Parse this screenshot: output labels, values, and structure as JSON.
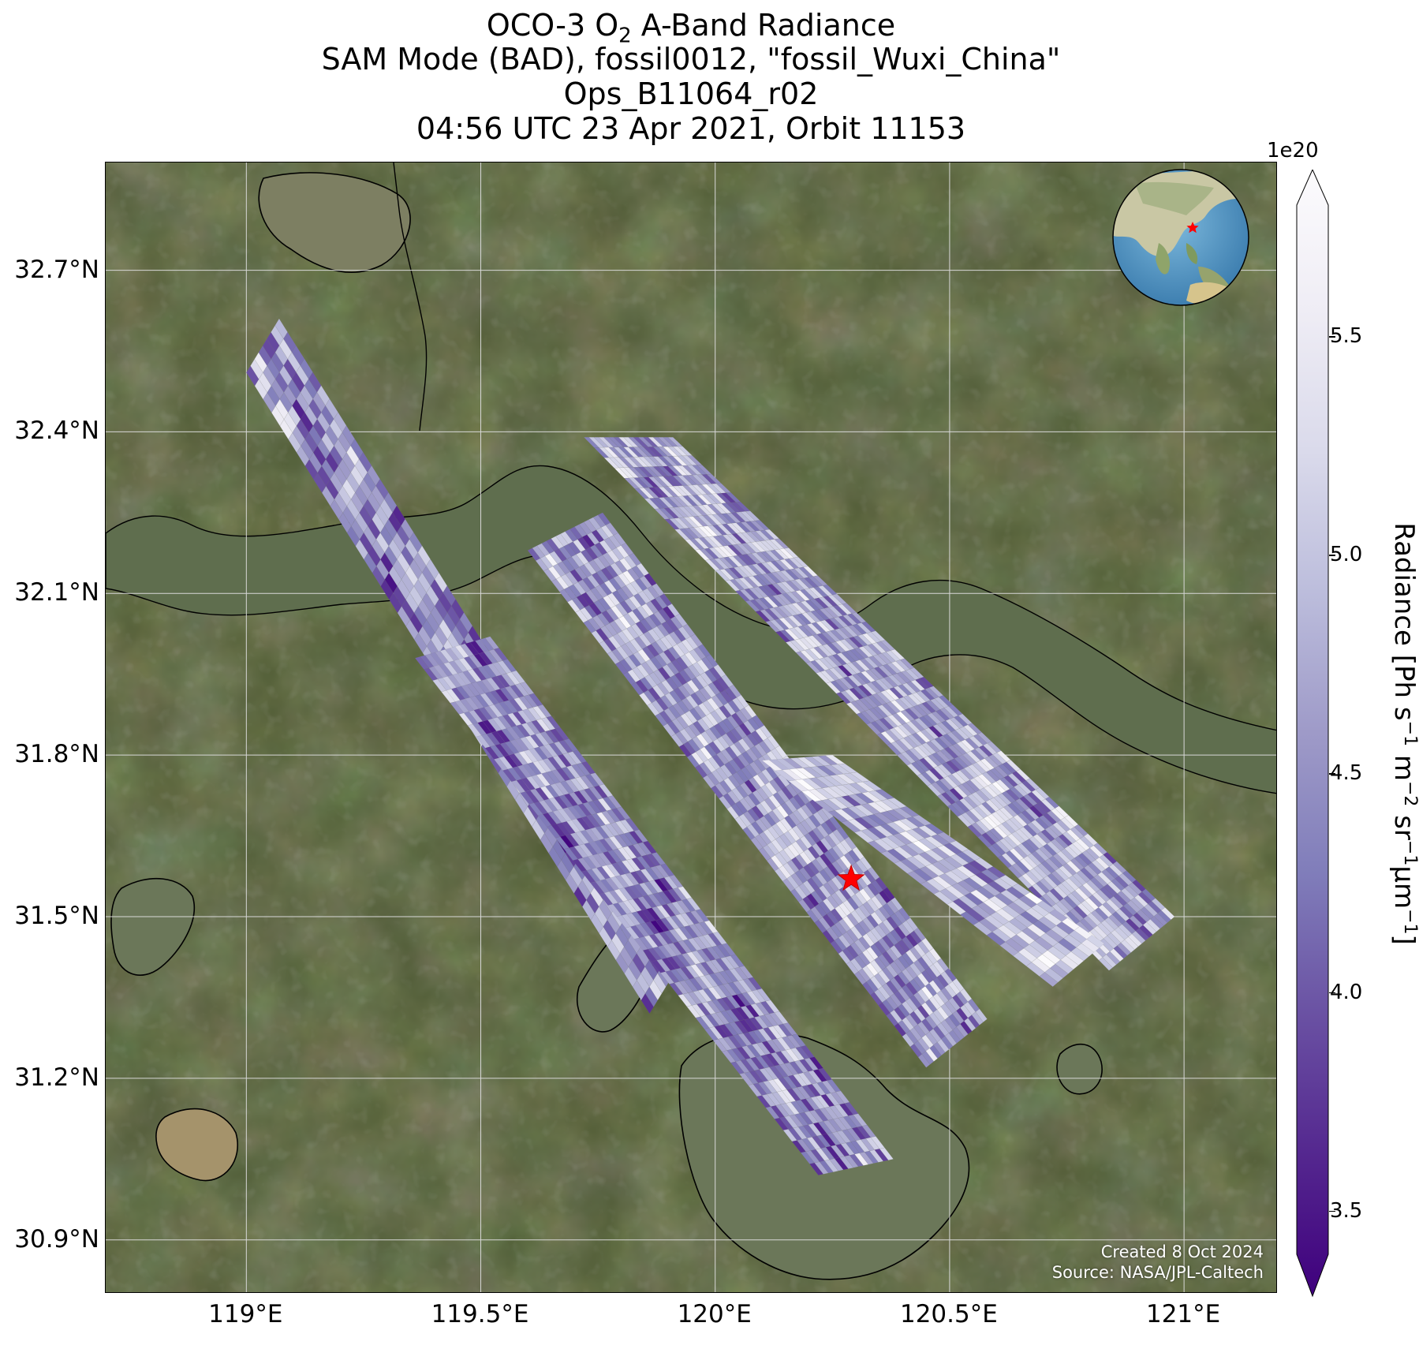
{
  "title": {
    "line1_prefix": "OCO-3 O",
    "line1_sub": "2",
    "line1_suffix": " A-Band Radiance",
    "line2": "SAM Mode (BAD), fossil0012, \"fossil_Wuxi_China\"",
    "line3": "Ops_B11064_r02",
    "line4": "04:56 UTC 23 Apr 2021, Orbit 11153"
  },
  "axes": {
    "lon_range": [
      118.7,
      121.2
    ],
    "lat_range": [
      30.8,
      32.9
    ],
    "lat_ticks": [
      "32.7°N",
      "32.4°N",
      "32.1°N",
      "31.8°N",
      "31.5°N",
      "31.2°N",
      "30.9°N"
    ],
    "lat_values": [
      32.7,
      32.4,
      32.1,
      31.8,
      31.5,
      31.2,
      30.9
    ],
    "lon_ticks": [
      "119°E",
      "119.5°E",
      "120°E",
      "120.5°E",
      "121°E"
    ],
    "lon_values": [
      119.0,
      119.5,
      120.0,
      120.5,
      121.0
    ],
    "grid": true
  },
  "target": {
    "lon": 120.29,
    "lat": 31.57,
    "marker": "red-star"
  },
  "colorbar": {
    "exponent": "1e20",
    "ticks": [
      "3.5",
      "4.0",
      "4.5",
      "5.0",
      "5.5"
    ],
    "tick_values": [
      3.5,
      4.0,
      4.5,
      5.0,
      5.5
    ],
    "range": [
      3.4,
      5.8
    ],
    "extend": "both",
    "colormap": [
      "#3f007d",
      "#54278f",
      "#6a51a3",
      "#807dba",
      "#9e9ac8",
      "#bcbddc",
      "#dadaeb",
      "#efedf5",
      "#fcfbfd"
    ],
    "label_main": "Radiance [Ph s",
    "label_sup1": "−1",
    "label_m": " m",
    "label_sup2": "−2",
    "label_sr": " sr",
    "label_sup3": "−1",
    "label_um": "μm",
    "label_sup4": "−1",
    "label_end": "]"
  },
  "credits": {
    "created": "Created 8 Oct 2024",
    "source": "Source: NASA/JPL-Caltech"
  },
  "colors": {
    "land": "#4f5a34",
    "water": "#5f6e4e",
    "coastline": "#000000",
    "grid": "#d8d8d8",
    "star": "#ff0000"
  }
}
